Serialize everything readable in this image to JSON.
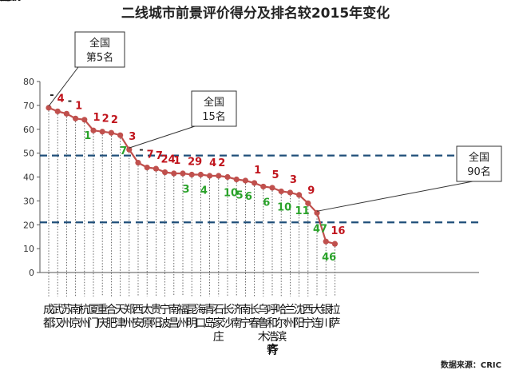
{
  "chart_data": {
    "type": "line",
    "title": "二线城市前景评价得分及排名较2015年变化",
    "source": "数据来源：CRIC",
    "ylim": [
      0,
      80
    ],
    "y_ticks": [
      "0",
      "10",
      "20",
      "30",
      "40",
      "50",
      "60",
      "70",
      "80"
    ],
    "reference_lines": [
      49,
      21
    ],
    "colors": {
      "line": "#c0504d",
      "marker": "#c0504d",
      "ref": "#1f4e79",
      "up": "#c0141c",
      "down": "#2aa22a"
    },
    "points": [
      {
        "city": "成都",
        "value": 69,
        "change": "-",
        "color": "black"
      },
      {
        "city": "武汉",
        "value": 67.5,
        "change": "4",
        "color": "red"
      },
      {
        "city": "苏州",
        "value": 66.5,
        "change": "-",
        "color": "black"
      },
      {
        "city": "南京",
        "value": 64.5,
        "change": "1",
        "color": "red"
      },
      {
        "city": "杭州",
        "value": 64,
        "change": "1",
        "color": "green"
      },
      {
        "city": "厦门",
        "value": 59.5,
        "change": "1",
        "color": "red"
      },
      {
        "city": "重庆",
        "value": 59,
        "change": "2",
        "color": "red"
      },
      {
        "city": "合肥",
        "value": 58.5,
        "change": "2",
        "color": "red"
      },
      {
        "city": "天津",
        "value": 57.5,
        "change": "7",
        "color": "green"
      },
      {
        "city": "郑州",
        "value": 51.5,
        "change": "3",
        "color": "red"
      },
      {
        "city": "西安",
        "value": 46,
        "change": "-",
        "color": "black"
      },
      {
        "city": "太原",
        "value": 44,
        "change": "7",
        "color": "red"
      },
      {
        "city": "贵阳",
        "value": 43.5,
        "change": "7",
        "color": "red"
      },
      {
        "city": "宁波",
        "value": 42,
        "change": "24",
        "color": "red"
      },
      {
        "city": "南昌",
        "value": 41.5,
        "change": "1",
        "color": "red"
      },
      {
        "city": "福州",
        "value": 41.5,
        "change": "3",
        "color": "green"
      },
      {
        "city": "昆明",
        "value": 41,
        "change": "29",
        "color": "red"
      },
      {
        "city": "海口",
        "value": 41,
        "change": "4",
        "color": "green"
      },
      {
        "city": "青岛",
        "value": 40.5,
        "change": "4",
        "color": "red"
      },
      {
        "city": "石家庄",
        "value": 40.5,
        "change": "2",
        "color": "red"
      },
      {
        "city": "长沙",
        "value": 40,
        "change": "10",
        "color": "green"
      },
      {
        "city": "济南",
        "value": 39,
        "change": "5",
        "color": "green"
      },
      {
        "city": "南宁",
        "value": 38.5,
        "change": "6",
        "color": "green"
      },
      {
        "city": "长春",
        "value": 37.5,
        "change": "1",
        "color": "red"
      },
      {
        "city": "乌鲁木齐",
        "value": 36,
        "change": "6",
        "color": "green"
      },
      {
        "city": "呼和浩特",
        "value": 35.5,
        "change": "5",
        "color": "red"
      },
      {
        "city": "哈尔滨",
        "value": 34,
        "change": "10",
        "color": "green"
      },
      {
        "city": "兰州",
        "value": 33.5,
        "change": "3",
        "color": "red"
      },
      {
        "city": "沈阳",
        "value": 32.5,
        "change": "11",
        "color": "green"
      },
      {
        "city": "西宁",
        "value": 29,
        "change": "9",
        "color": "red"
      },
      {
        "city": "大连",
        "value": 25,
        "change": "47",
        "color": "green"
      },
      {
        "city": "银川",
        "value": 13,
        "change": "46",
        "color": "green"
      },
      {
        "city": "拉萨",
        "value": 12,
        "change": "16",
        "color": "red"
      }
    ],
    "callouts": [
      {
        "line1": "全国",
        "line2": "第5名",
        "target": 0
      },
      {
        "line1": "全国",
        "line2": "15名",
        "target": 9
      },
      {
        "line1": "全国",
        "line2": "90名",
        "target": 30
      }
    ]
  }
}
